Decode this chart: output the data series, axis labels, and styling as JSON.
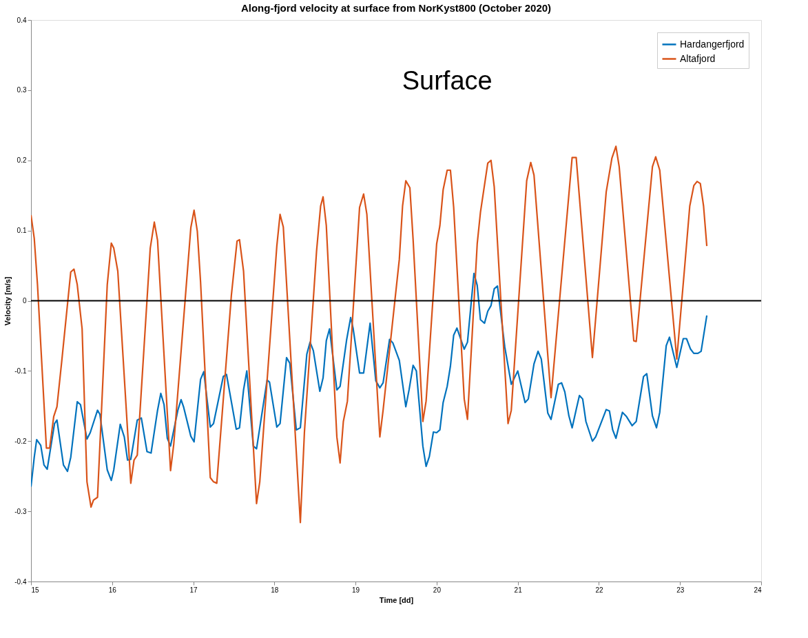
{
  "chart_data": {
    "type": "line",
    "title": "Along-fjord velocity at surface from NorKyst800 (October 2020)",
    "xlabel": "Time [dd]",
    "ylabel": "Velocity [m/s]",
    "annotations": [
      "Surface"
    ],
    "xlim": [
      15,
      24
    ],
    "xticks": [
      15,
      16,
      17,
      18,
      19,
      20,
      21,
      22,
      23,
      24
    ],
    "ylim": [
      -0.4,
      0.4
    ],
    "yticks": [
      -0.4,
      -0.3,
      -0.2,
      -0.1,
      0,
      0.1,
      0.2,
      0.3,
      0.4
    ],
    "grid": false,
    "legend": "top right",
    "marker": "none",
    "line_style": "solid",
    "ref_lines": [
      {
        "axis": "y",
        "value": 0,
        "label": null,
        "color": "#000000"
      }
    ],
    "series": [
      {
        "name": "Hardangerfjord",
        "color": "#0072bd",
        "x": [
          15.0,
          15.04,
          15.07,
          15.12,
          15.16,
          15.2,
          15.29,
          15.32,
          15.4,
          15.45,
          15.49,
          15.57,
          15.61,
          15.69,
          15.73,
          15.82,
          15.85,
          15.94,
          15.99,
          16.02,
          16.1,
          16.15,
          16.19,
          16.23,
          16.31,
          16.36,
          16.43,
          16.48,
          16.56,
          16.6,
          16.64,
          16.68,
          16.72,
          16.81,
          16.85,
          16.88,
          16.97,
          17.01,
          17.09,
          17.13,
          17.21,
          17.25,
          17.37,
          17.41,
          17.53,
          17.57,
          17.62,
          17.66,
          17.74,
          17.78,
          17.91,
          17.94,
          18.03,
          18.07,
          18.15,
          18.19,
          18.27,
          18.32,
          18.4,
          18.44,
          18.48,
          18.56,
          18.6,
          18.64,
          18.68,
          18.77,
          18.81,
          18.89,
          18.94,
          18.97,
          19.05,
          19.1,
          19.18,
          19.25,
          19.3,
          19.34,
          19.42,
          19.46,
          19.54,
          19.62,
          19.66,
          19.71,
          19.75,
          19.83,
          19.87,
          19.91,
          19.96,
          20.0,
          20.04,
          20.08,
          20.13,
          20.17,
          20.21,
          20.25,
          20.34,
          20.38,
          20.46,
          20.5,
          20.54,
          20.59,
          20.63,
          20.67,
          20.71,
          20.75,
          20.84,
          20.92,
          21.0,
          21.09,
          21.13,
          21.2,
          21.25,
          21.29,
          21.37,
          21.41,
          21.5,
          21.54,
          21.58,
          21.63,
          21.67,
          21.72,
          21.76,
          21.8,
          21.84,
          21.92,
          21.96,
          22.01,
          22.09,
          22.13,
          22.17,
          22.21,
          22.25,
          22.29,
          22.34,
          22.41,
          22.46,
          22.55,
          22.59,
          22.66,
          22.71,
          22.75,
          22.83,
          22.87,
          22.96,
          23.04,
          23.08,
          23.13,
          23.17,
          23.22,
          23.26,
          23.33
        ],
        "values": [
          -0.265,
          -0.223,
          -0.198,
          -0.206,
          -0.234,
          -0.24,
          -0.175,
          -0.17,
          -0.234,
          -0.243,
          -0.223,
          -0.144,
          -0.148,
          -0.197,
          -0.188,
          -0.156,
          -0.162,
          -0.241,
          -0.256,
          -0.241,
          -0.176,
          -0.194,
          -0.227,
          -0.226,
          -0.17,
          -0.167,
          -0.215,
          -0.217,
          -0.156,
          -0.132,
          -0.148,
          -0.196,
          -0.207,
          -0.156,
          -0.141,
          -0.151,
          -0.193,
          -0.201,
          -0.112,
          -0.101,
          -0.18,
          -0.175,
          -0.108,
          -0.105,
          -0.183,
          -0.181,
          -0.127,
          -0.1,
          -0.207,
          -0.211,
          -0.113,
          -0.116,
          -0.18,
          -0.175,
          -0.081,
          -0.089,
          -0.184,
          -0.181,
          -0.076,
          -0.059,
          -0.071,
          -0.129,
          -0.11,
          -0.057,
          -0.04,
          -0.127,
          -0.122,
          -0.056,
          -0.024,
          -0.039,
          -0.103,
          -0.103,
          -0.032,
          -0.114,
          -0.124,
          -0.117,
          -0.055,
          -0.06,
          -0.085,
          -0.151,
          -0.127,
          -0.092,
          -0.1,
          -0.207,
          -0.236,
          -0.222,
          -0.187,
          -0.188,
          -0.184,
          -0.145,
          -0.122,
          -0.093,
          -0.049,
          -0.039,
          -0.069,
          -0.059,
          0.039,
          0.022,
          -0.027,
          -0.032,
          -0.015,
          -0.007,
          0.017,
          0.021,
          -0.066,
          -0.119,
          -0.1,
          -0.145,
          -0.14,
          -0.09,
          -0.072,
          -0.083,
          -0.16,
          -0.169,
          -0.119,
          -0.117,
          -0.13,
          -0.164,
          -0.181,
          -0.155,
          -0.135,
          -0.14,
          -0.172,
          -0.2,
          -0.194,
          -0.179,
          -0.155,
          -0.157,
          -0.184,
          -0.196,
          -0.177,
          -0.159,
          -0.165,
          -0.178,
          -0.172,
          -0.108,
          -0.104,
          -0.164,
          -0.181,
          -0.159,
          -0.064,
          -0.052,
          -0.095,
          -0.054,
          -0.054,
          -0.069,
          -0.075,
          -0.075,
          -0.072,
          -0.021
        ]
      },
      {
        "name": "Altafjord",
        "color": "#d95319",
        "x": [
          15.0,
          15.04,
          15.08,
          15.19,
          15.23,
          15.28,
          15.32,
          15.38,
          15.49,
          15.53,
          15.57,
          15.63,
          15.69,
          15.74,
          15.77,
          15.82,
          15.94,
          15.99,
          16.02,
          16.07,
          16.23,
          16.27,
          16.31,
          16.47,
          16.52,
          16.56,
          16.72,
          16.76,
          16.97,
          17.01,
          17.05,
          17.09,
          17.21,
          17.25,
          17.29,
          17.47,
          17.54,
          17.57,
          17.62,
          17.78,
          17.82,
          18.03,
          18.07,
          18.11,
          18.32,
          18.37,
          18.52,
          18.57,
          18.6,
          18.64,
          18.77,
          18.81,
          18.85,
          18.9,
          19.05,
          19.1,
          19.14,
          19.3,
          19.34,
          19.54,
          19.58,
          19.62,
          19.67,
          19.71,
          19.83,
          19.87,
          20.0,
          20.04,
          20.08,
          20.13,
          20.17,
          20.21,
          20.34,
          20.38,
          20.5,
          20.54,
          20.63,
          20.67,
          20.71,
          20.88,
          20.92,
          21.11,
          21.16,
          21.2,
          21.41,
          21.67,
          21.72,
          21.92,
          22.09,
          22.16,
          22.21,
          22.25,
          22.43,
          22.46,
          22.66,
          22.7,
          22.75,
          22.96,
          23.06,
          23.12,
          23.17,
          23.21,
          23.25,
          23.29,
          23.33
        ],
        "values": [
          0.122,
          0.089,
          0.023,
          -0.21,
          -0.21,
          -0.165,
          -0.151,
          -0.085,
          0.041,
          0.045,
          0.023,
          -0.04,
          -0.258,
          -0.294,
          -0.284,
          -0.28,
          0.023,
          0.082,
          0.075,
          0.042,
          -0.26,
          -0.227,
          -0.22,
          0.075,
          0.112,
          0.086,
          -0.242,
          -0.204,
          0.104,
          0.129,
          0.099,
          0.027,
          -0.252,
          -0.258,
          -0.26,
          0.008,
          0.085,
          0.087,
          0.042,
          -0.289,
          -0.258,
          0.078,
          0.123,
          0.105,
          -0.316,
          -0.188,
          0.071,
          0.135,
          0.148,
          0.107,
          -0.194,
          -0.231,
          -0.172,
          -0.143,
          0.133,
          0.152,
          0.123,
          -0.194,
          -0.156,
          0.059,
          0.135,
          0.171,
          0.161,
          0.087,
          -0.172,
          -0.143,
          0.081,
          0.107,
          0.158,
          0.186,
          0.186,
          0.133,
          -0.14,
          -0.169,
          0.081,
          0.126,
          0.196,
          0.2,
          0.162,
          -0.175,
          -0.156,
          0.171,
          0.197,
          0.179,
          -0.138,
          0.204,
          0.204,
          -0.081,
          0.155,
          0.203,
          0.22,
          0.191,
          -0.057,
          -0.058,
          0.191,
          0.205,
          0.186,
          -0.083,
          0.052,
          0.135,
          0.164,
          0.17,
          0.167,
          0.135,
          0.078
        ]
      }
    ]
  }
}
